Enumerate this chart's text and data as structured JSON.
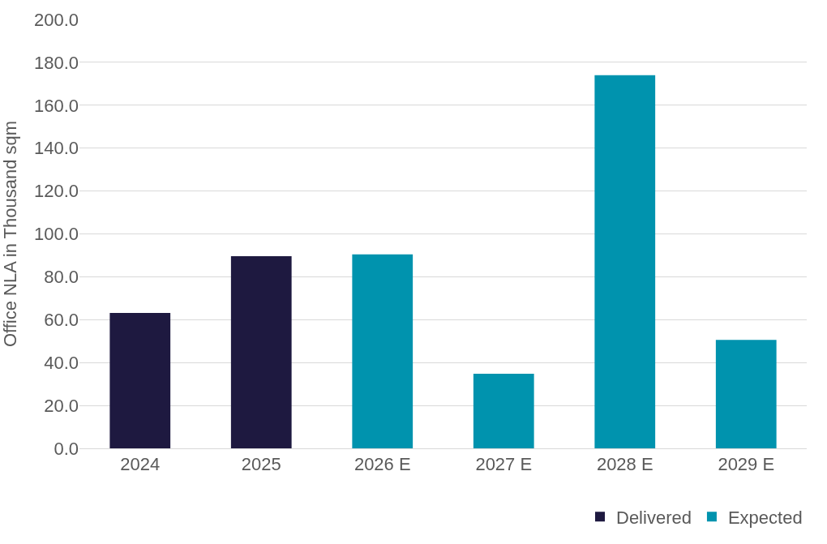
{
  "chart_data": {
    "type": "bar",
    "ylabel": "Office NLA in Thousand sqm",
    "categories": [
      "2024",
      "2025",
      "2026 E",
      "2027 E",
      "2028 E",
      "2029 E"
    ],
    "series": [
      {
        "name": "Delivered",
        "color": "#1e1940",
        "values": [
          63.1,
          89.6,
          null,
          null,
          null,
          null
        ]
      },
      {
        "name": "Expected",
        "color": "#0093ae",
        "values": [
          null,
          null,
          90.5,
          34.8,
          174.0,
          50.6
        ]
      }
    ],
    "stacked": true,
    "ylim": [
      0,
      200
    ],
    "yticks": [
      {
        "value": 0,
        "label": "0.0"
      },
      {
        "value": 20,
        "label": "20.0"
      },
      {
        "value": 40,
        "label": "40.0"
      },
      {
        "value": 60,
        "label": "60.0"
      },
      {
        "value": 80,
        "label": "80.0"
      },
      {
        "value": 100,
        "label": "100.0"
      },
      {
        "value": 120,
        "label": "120.0"
      },
      {
        "value": 140,
        "label": "140.0"
      },
      {
        "value": 160,
        "label": "160.0"
      },
      {
        "value": 180,
        "label": "180.0"
      },
      {
        "value": 200,
        "label": "200.0"
      }
    ],
    "grid": "y",
    "legend": "bottom right"
  }
}
